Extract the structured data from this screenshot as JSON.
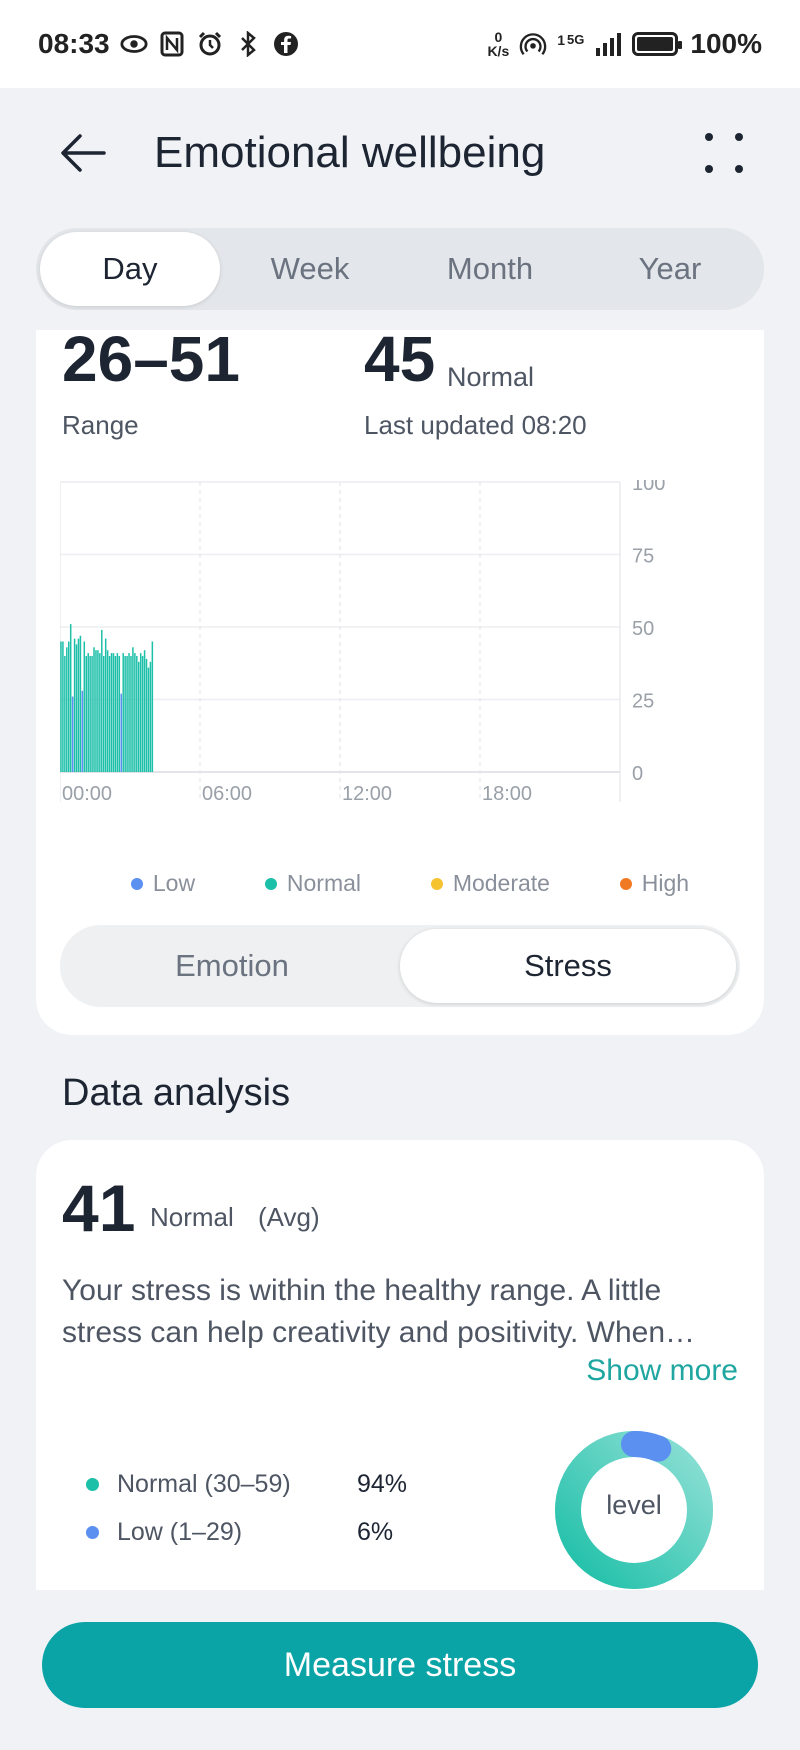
{
  "status_bar": {
    "time": "08:33",
    "left_icons": [
      "eye-icon",
      "nfc-icon",
      "alarm-icon",
      "bluetooth-icon",
      "facebook-icon"
    ],
    "speed_value": "0",
    "speed_unit": "K/s",
    "network": "5G",
    "sim": "1",
    "battery": "100%"
  },
  "header": {
    "title": "Emotional wellbeing"
  },
  "period_tabs": [
    {
      "label": "Day",
      "active": true
    },
    {
      "label": "Week",
      "active": false
    },
    {
      "label": "Month",
      "active": false
    },
    {
      "label": "Year",
      "active": false
    }
  ],
  "summary": {
    "range_value": "26–51",
    "range_label": "Range",
    "latest_value": "45",
    "latest_status": "Normal",
    "last_updated": "Last updated 08:20"
  },
  "chart_data": {
    "type": "bar",
    "x_tick_labels": [
      "00:00",
      "06:00",
      "12:00",
      "18:00"
    ],
    "y_tick_labels": [
      "100",
      "75",
      "50",
      "25",
      "0"
    ],
    "ylim": [
      0,
      100
    ],
    "grid": true,
    "bar_interval_minutes": 5,
    "start_time": "00:00",
    "values": [
      45,
      45,
      40,
      43,
      45,
      51,
      26,
      46,
      44,
      46,
      47,
      28,
      45,
      40,
      41,
      40,
      40,
      43,
      42,
      42,
      41,
      49,
      40,
      46,
      42,
      40,
      41,
      41,
      40,
      41,
      40,
      27,
      41,
      40,
      40,
      41,
      40,
      43,
      41,
      40,
      38,
      41,
      40,
      42,
      39,
      36,
      38,
      45
    ],
    "levels": [
      "normal",
      "normal",
      "normal",
      "normal",
      "normal",
      "normal",
      "low",
      "normal",
      "normal",
      "normal",
      "normal",
      "low",
      "normal",
      "normal",
      "normal",
      "normal",
      "normal",
      "normal",
      "normal",
      "normal",
      "normal",
      "normal",
      "normal",
      "normal",
      "normal",
      "normal",
      "normal",
      "normal",
      "normal",
      "normal",
      "normal",
      "low",
      "normal",
      "normal",
      "normal",
      "normal",
      "normal",
      "normal",
      "normal",
      "normal",
      "normal",
      "normal",
      "normal",
      "normal",
      "normal",
      "normal",
      "normal",
      "normal"
    ],
    "legend": [
      {
        "name": "Low",
        "color": "#5b8ff0"
      },
      {
        "name": "Normal",
        "color": "#1cbfa8"
      },
      {
        "name": "Moderate",
        "color": "#f5c230"
      },
      {
        "name": "High",
        "color": "#f07a24"
      }
    ]
  },
  "mode_toggle": [
    {
      "label": "Emotion",
      "active": false
    },
    {
      "label": "Stress",
      "active": true
    }
  ],
  "analysis": {
    "section_title": "Data analysis",
    "avg_value": "41",
    "avg_status": "Normal",
    "avg_suffix": "(Avg)",
    "description": "Your stress is within the healthy range. A little stress can help creativity and positivity. When…",
    "show_more": "Show more",
    "distribution": [
      {
        "label": "Normal (30–59)",
        "percent": "94%",
        "fraction": 0.94,
        "color": "#1cbfa8"
      },
      {
        "label": "Low (1–29)",
        "percent": "6%",
        "fraction": 0.06,
        "color": "#5b8ff0"
      }
    ],
    "donut_label": "level"
  },
  "measure_button": "Measure stress",
  "colors": {
    "accent": "#0aa3a6",
    "link": "#1fa6a0"
  }
}
